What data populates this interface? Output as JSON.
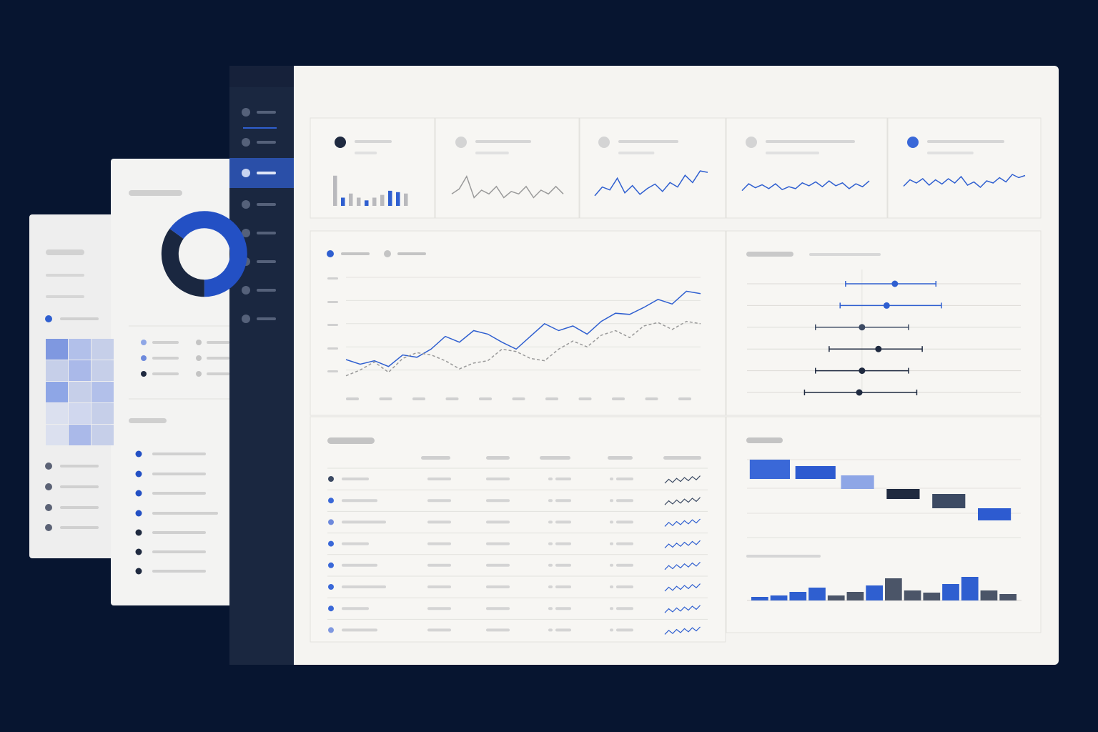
{
  "chart_data": [
    {
      "type": "kpi-bars",
      "ylim": [
        0,
        50
      ],
      "values": [
        44,
        12,
        18,
        12,
        8,
        12,
        16,
        22,
        20,
        18
      ],
      "colors": [
        "#b9b9bd",
        "#2f5fd0",
        "#b9b9bd",
        "#b9b9bd",
        "#2f5fd0",
        "#b9b9bd",
        "#b9b9bd",
        "#2f5fd0",
        "#2f5fd0",
        "#b9b9bd"
      ]
    },
    {
      "type": "sparkline",
      "ylim": [
        0,
        100
      ],
      "color": "#9a9a9a",
      "values": [
        25,
        45,
        95,
        10,
        40,
        25,
        55,
        10,
        35,
        25,
        55,
        10,
        40,
        25,
        55,
        25
      ]
    },
    {
      "type": "sparkline",
      "ylim": [
        0,
        100
      ],
      "color": "#2f5fd0",
      "values": [
        10,
        40,
        30,
        70,
        20,
        45,
        15,
        35,
        50,
        25,
        55,
        40,
        80,
        55,
        95,
        90
      ]
    },
    {
      "type": "sparkline",
      "ylim": [
        0,
        100
      ],
      "color": "#2f5fd0",
      "values": [
        20,
        55,
        35,
        50,
        30,
        55,
        25,
        40,
        30,
        60,
        45,
        65,
        40,
        70,
        45,
        60,
        30,
        55,
        40,
        70
      ]
    },
    {
      "type": "sparkline",
      "ylim": [
        0,
        100
      ],
      "color": "#2f5fd0",
      "values": [
        25,
        55,
        40,
        60,
        30,
        55,
        35,
        60,
        40,
        70,
        30,
        45,
        20,
        50,
        40,
        65,
        45,
        80,
        65,
        75
      ]
    },
    {
      "type": "line",
      "ylim": [
        0,
        100
      ],
      "grid": true,
      "series": [
        {
          "color": "#2f5fd0",
          "values": [
            29,
            25,
            28,
            23,
            33,
            31,
            38,
            49,
            44,
            54,
            51,
            44,
            38,
            49,
            60,
            54,
            58,
            51,
            62,
            69,
            68,
            74,
            81,
            77,
            88,
            86
          ]
        },
        {
          "color": "#9a9a9a",
          "dash": true,
          "values": [
            15,
            20,
            27,
            18,
            30,
            35,
            33,
            28,
            21,
            26,
            28,
            38,
            36,
            30,
            28,
            38,
            45,
            40,
            50,
            54,
            48,
            58,
            61,
            55,
            62,
            60
          ]
        }
      ]
    },
    {
      "type": "dot-range",
      "xlim": [
        0,
        100
      ],
      "values": [
        54,
        51,
        42,
        48,
        42,
        41
      ],
      "low": [
        36,
        34,
        25,
        30,
        25,
        21
      ],
      "high": [
        69,
        71,
        59,
        64,
        59,
        62
      ],
      "colors": [
        "#2f5fd0",
        "#2f5fd0",
        "#3c4a63",
        "#1f2a40",
        "#1f2a40",
        "#1f2a40"
      ]
    },
    {
      "type": "floating-bar",
      "ylim": [
        0,
        100
      ],
      "low": [
        70,
        70,
        56,
        42,
        29,
        12
      ],
      "high": [
        97,
        88,
        75,
        56,
        49,
        29
      ],
      "colors": [
        "#3a68d8",
        "#2d5bd0",
        "#8ea6e6",
        "#1f2a40",
        "#3c4a63",
        "#2d5bd0"
      ]
    },
    {
      "type": "bar",
      "ylim": [
        0,
        40
      ],
      "values": [
        5,
        7,
        12,
        18,
        7,
        12,
        21,
        31,
        14,
        11,
        23,
        33,
        14,
        9
      ],
      "colors": [
        "#2f5fd0",
        "#2f5fd0",
        "#2f5fd0",
        "#2f5fd0",
        "#4b5568",
        "#4b5568",
        "#2f5fd0",
        "#4b5568",
        "#4b5568",
        "#4b5568",
        "#2f5fd0",
        "#2f5fd0",
        "#4b5568",
        "#4b5568"
      ]
    },
    {
      "type": "donut",
      "values": [
        65,
        35
      ],
      "colors": [
        "#2350c4",
        "#1a2740"
      ]
    }
  ]
}
